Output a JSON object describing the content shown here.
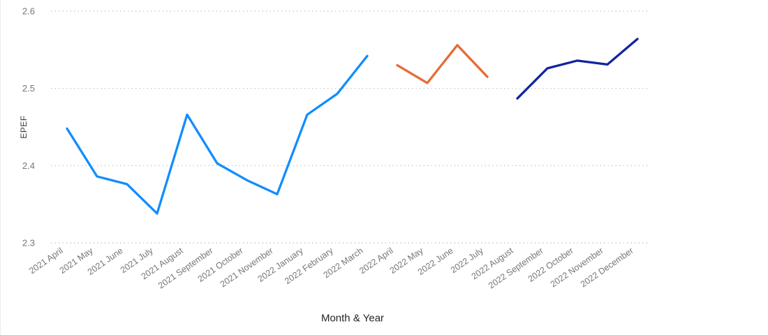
{
  "chart_data": {
    "type": "line",
    "title": "",
    "xlabel": "Month & Year",
    "ylabel": "EPEF",
    "ylim": [
      2.3,
      2.6
    ],
    "yticks": [
      2.6,
      2.5,
      2.4,
      2.3
    ],
    "grid": "horizontal-dotted",
    "legend_position": "none",
    "categories": [
      "2021 April",
      "2021 May",
      "2021 June",
      "2021 July",
      "2021 August",
      "2021 September",
      "2021 October",
      "2021 November",
      "2022 January",
      "2022 February",
      "2022 March",
      "2022 April",
      "2022 May",
      "2022 June",
      "2022 July",
      "2022 August",
      "2022 September",
      "2022 October",
      "2022 November",
      "2022 December"
    ],
    "series": [
      {
        "color": "#118DFF",
        "values": [
          2.448,
          2.386,
          2.376,
          2.338,
          2.466,
          2.403,
          2.381,
          2.363,
          2.466,
          2.493,
          2.542,
          null,
          null,
          null,
          null,
          null,
          null,
          null,
          null,
          null
        ]
      },
      {
        "color": "#E66C37",
        "values": [
          null,
          null,
          null,
          null,
          null,
          null,
          null,
          null,
          null,
          null,
          null,
          2.53,
          2.507,
          2.556,
          2.515,
          null,
          null,
          null,
          null,
          null
        ]
      },
      {
        "color": "#12239E",
        "values": [
          null,
          null,
          null,
          null,
          null,
          null,
          null,
          null,
          null,
          null,
          null,
          null,
          null,
          null,
          null,
          2.487,
          2.526,
          2.536,
          2.531,
          2.564
        ]
      }
    ]
  },
  "style_colors": {
    "gridline": "#cdcbc9",
    "tick_label": "#777675",
    "axis_title": "#252423"
  }
}
